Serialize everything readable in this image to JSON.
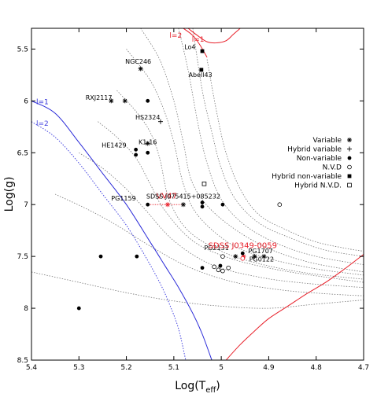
{
  "chart_data": {
    "type": "scatter",
    "title": "",
    "xlabel_main": "Log(T",
    "xlabel_sub": "eff",
    "xlabel_close": ")",
    "ylabel": "Log(g)",
    "xlim": [
      5.4,
      4.7
    ],
    "ylim": [
      8.5,
      5.3
    ],
    "x_ticks": [
      5.4,
      5.3,
      5.2,
      5.1,
      5.0,
      4.9,
      4.8,
      4.7
    ],
    "x_tick_labels": [
      "5.4",
      "5.3",
      "5.2",
      "5.1",
      "5",
      "4.9",
      "4.8",
      "4.7"
    ],
    "y_ticks": [
      5.5,
      6.0,
      6.5,
      7.0,
      7.5,
      8.0,
      8.5
    ],
    "y_tick_labels": [
      "5.5",
      "6",
      "6.5",
      "7",
      "7.5",
      "8",
      "8.5"
    ],
    "grid": false,
    "legend_placement": "right",
    "legend": [
      {
        "label": "Variable",
        "marker": "asterisk"
      },
      {
        "label": "Hybrid variable",
        "marker": "plus"
      },
      {
        "label": "Non-variable",
        "marker": "filled-circle"
      },
      {
        "label": "N.V.D",
        "marker": "open-circle"
      },
      {
        "label": "Hybrid non-variable",
        "marker": "filled-square"
      },
      {
        "label": "Hybrid N.V.D.",
        "marker": "open-square"
      }
    ],
    "points": [
      {
        "marker": "asterisk",
        "x": 5.17,
        "y": 5.69
      },
      {
        "marker": "asterisk",
        "x": 5.232,
        "y": 6.0
      },
      {
        "marker": "asterisk",
        "x": 5.203,
        "y": 6.0
      },
      {
        "marker": "asterisk",
        "x": 5.155,
        "y": 6.41
      },
      {
        "marker": "asterisk",
        "x": 5.08,
        "y": 7.0
      },
      {
        "marker": "asterisk",
        "x": 4.97,
        "y": 7.5
      },
      {
        "marker": "asterisk",
        "x": 4.93,
        "y": 7.5
      },
      {
        "marker": "asterisk",
        "x": 4.91,
        "y": 7.5
      },
      {
        "marker": "asterisk",
        "x": 5.113,
        "y": 7.0,
        "color": "#e8202a"
      },
      {
        "marker": "asterisk",
        "x": 4.953,
        "y": 7.5,
        "color": "#e8202a"
      },
      {
        "marker": "plus",
        "x": 5.128,
        "y": 6.2
      },
      {
        "marker": "filled-circle",
        "x": 5.155,
        "y": 6.0
      },
      {
        "marker": "filled-circle",
        "x": 5.18,
        "y": 6.47
      },
      {
        "marker": "filled-circle",
        "x": 5.18,
        "y": 6.52
      },
      {
        "marker": "filled-circle",
        "x": 5.155,
        "y": 6.5
      },
      {
        "marker": "filled-circle",
        "x": 5.155,
        "y": 7.0
      },
      {
        "marker": "filled-circle",
        "x": 5.04,
        "y": 6.98
      },
      {
        "marker": "filled-circle",
        "x": 5.04,
        "y": 7.02
      },
      {
        "marker": "filled-circle",
        "x": 4.997,
        "y": 7.0
      },
      {
        "marker": "filled-circle",
        "x": 5.254,
        "y": 7.5
      },
      {
        "marker": "filled-circle",
        "x": 5.178,
        "y": 7.5
      },
      {
        "marker": "filled-circle",
        "x": 5.3,
        "y": 8.0
      },
      {
        "marker": "filled-circle",
        "x": 5.04,
        "y": 7.61
      },
      {
        "marker": "filled-circle",
        "x": 5.002,
        "y": 7.59
      },
      {
        "marker": "filled-circle",
        "x": 4.955,
        "y": 7.47
      },
      {
        "marker": "open-circle",
        "x": 4.877,
        "y": 7.0
      },
      {
        "marker": "open-circle",
        "x": 4.997,
        "y": 7.5
      },
      {
        "marker": "open-circle",
        "x": 5.015,
        "y": 7.6
      },
      {
        "marker": "open-circle",
        "x": 5.006,
        "y": 7.63
      },
      {
        "marker": "open-circle",
        "x": 4.997,
        "y": 7.64
      },
      {
        "marker": "open-circle",
        "x": 4.985,
        "y": 7.61
      },
      {
        "marker": "open-circle",
        "x": 4.955,
        "y": 7.52,
        "color": "#e8202a"
      },
      {
        "marker": "filled-square",
        "x": 5.04,
        "y": 5.52
      },
      {
        "marker": "filled-square",
        "x": 5.042,
        "y": 5.7
      },
      {
        "marker": "open-square",
        "x": 5.036,
        "y": 6.8
      }
    ],
    "annotations": [
      {
        "text": "Lo4",
        "x": 5.066,
        "y": 5.5,
        "color": "#000000"
      },
      {
        "text": "NGC246",
        "x": 5.175,
        "y": 5.64,
        "color": "#000000"
      },
      {
        "text": "Abell43",
        "x": 5.044,
        "y": 5.77,
        "color": "#000000"
      },
      {
        "text": "RXJ2117",
        "x": 5.258,
        "y": 5.99,
        "color": "#000000"
      },
      {
        "text": "HE1429",
        "x": 5.226,
        "y": 6.45,
        "color": "#000000"
      },
      {
        "text": "HS2324",
        "x": 5.155,
        "y": 6.18,
        "color": "#000000"
      },
      {
        "text": "K1-16",
        "x": 5.155,
        "y": 6.42,
        "color": "#000000"
      },
      {
        "text": "VV47",
        "x": 5.115,
        "y": 6.94,
        "color": "#e8202a"
      },
      {
        "text": "SDSS J075415+085232",
        "x": 5.08,
        "y": 6.94,
        "color": "#000000"
      },
      {
        "text": "PG1159",
        "x": 5.206,
        "y": 6.96,
        "color": "#000000"
      },
      {
        "text": "PG2131",
        "x": 5.01,
        "y": 7.44,
        "color": "#000000"
      },
      {
        "text": "SDSS J0349-0059",
        "x": 4.955,
        "y": 7.42,
        "color": "#e8202a"
      },
      {
        "text": "PG1707",
        "x": 4.917,
        "y": 7.47,
        "color": "#000000"
      },
      {
        "text": "PG0122",
        "x": 4.915,
        "y": 7.55,
        "color": "#000000"
      }
    ],
    "instability_curves": [
      {
        "label": "l=1",
        "color": "#2a2ad8",
        "style": "solid",
        "label_x": 5.39,
        "label_y": 6.03,
        "x": [
          5.4,
          5.35,
          5.3,
          5.25,
          5.2,
          5.15,
          5.12,
          5.09,
          5.06,
          5.04,
          5.02
        ],
        "y": [
          6.0,
          6.12,
          6.4,
          6.7,
          7.0,
          7.36,
          7.58,
          7.8,
          8.05,
          8.25,
          8.5
        ]
      },
      {
        "label": "l=2",
        "color": "#4646e0",
        "style": "dotted",
        "label_x": 5.39,
        "label_y": 6.24,
        "x": [
          5.4,
          5.35,
          5.3,
          5.25,
          5.2,
          5.16,
          5.13,
          5.11,
          5.09,
          5.075
        ],
        "y": [
          6.2,
          6.35,
          6.6,
          6.9,
          7.2,
          7.5,
          7.75,
          7.95,
          8.2,
          8.5
        ]
      },
      {
        "label": "l=1",
        "color": "#e8202a",
        "style": "solid",
        "label_x": 5.062,
        "label_y": 5.43,
        "x": [
          5.07,
          5.05,
          5.03,
          5.01,
          4.99,
          4.975,
          4.96
        ],
        "y": [
          5.3,
          5.37,
          5.43,
          5.44,
          5.42,
          5.36,
          5.3
        ]
      },
      {
        "label": "l=2",
        "color": "#e8202a",
        "style": "solid",
        "label_x": 5.109,
        "label_y": 5.39,
        "x": [
          5.08,
          5.06,
          5.045,
          5.03
        ],
        "y": [
          5.3,
          5.37,
          5.46,
          5.58
        ]
      },
      {
        "label": "",
        "color": "#e8202a",
        "style": "solid",
        "label_x": 0,
        "label_y": 0,
        "x": [
          4.99,
          4.96,
          4.93,
          4.9,
          4.86,
          4.82,
          4.78,
          4.74,
          4.7
        ],
        "y": [
          8.5,
          8.35,
          8.22,
          8.1,
          7.98,
          7.86,
          7.75,
          7.62,
          7.48
        ]
      }
    ],
    "tracks": [
      {
        "x": [
          5.17,
          5.13,
          5.1,
          5.08,
          5.06,
          5.01,
          4.92,
          4.82,
          4.7
        ],
        "y": [
          5.3,
          5.6,
          6.0,
          6.4,
          6.8,
          7.1,
          7.38,
          7.55,
          7.65
        ]
      },
      {
        "x": [
          5.2,
          5.15,
          5.12,
          5.1,
          5.08,
          5.05,
          4.98,
          4.9,
          4.8,
          4.7
        ],
        "y": [
          5.5,
          5.8,
          6.1,
          6.4,
          6.8,
          7.1,
          7.38,
          7.52,
          7.62,
          7.68
        ]
      },
      {
        "x": [
          5.22,
          5.18,
          5.15,
          5.13,
          5.11,
          5.07,
          5.0,
          4.92,
          4.82,
          4.7
        ],
        "y": [
          5.9,
          6.1,
          6.3,
          6.55,
          6.95,
          7.25,
          7.45,
          7.57,
          7.66,
          7.72
        ]
      },
      {
        "x": [
          5.26,
          5.22,
          5.18,
          5.15,
          5.12,
          5.06,
          4.98,
          4.88,
          4.78,
          4.7
        ],
        "y": [
          6.2,
          6.35,
          6.55,
          6.8,
          7.05,
          7.35,
          7.52,
          7.63,
          7.7,
          7.75
        ]
      },
      {
        "x": [
          5.3,
          5.25,
          5.2,
          5.16,
          5.1,
          5.02,
          4.92,
          4.82,
          4.7
        ],
        "y": [
          6.5,
          6.65,
          6.85,
          7.05,
          7.35,
          7.58,
          7.7,
          7.76,
          7.8
        ]
      },
      {
        "x": [
          5.35,
          5.28,
          5.22,
          5.15,
          5.07,
          4.98,
          4.88,
          4.78,
          4.7
        ],
        "y": [
          6.9,
          7.05,
          7.2,
          7.4,
          7.6,
          7.74,
          7.82,
          7.86,
          7.88
        ]
      },
      {
        "x": [
          5.4,
          5.3,
          5.2,
          5.1,
          5.0,
          4.9,
          4.8,
          4.7
        ],
        "y": [
          7.65,
          7.75,
          7.85,
          7.93,
          7.98,
          8.0,
          7.96,
          7.92
        ]
      },
      {
        "x": [
          5.09,
          5.07,
          5.05,
          5.03,
          5.0,
          4.95,
          4.88,
          4.8,
          4.7
        ],
        "y": [
          5.3,
          5.7,
          6.2,
          6.6,
          6.95,
          7.2,
          7.38,
          7.5,
          7.58
        ]
      },
      {
        "x": [
          5.06,
          5.04,
          5.02,
          5.0,
          4.97,
          4.92,
          4.85,
          4.78,
          4.7
        ],
        "y": [
          5.3,
          5.9,
          6.3,
          6.65,
          6.95,
          7.18,
          7.33,
          7.44,
          7.5
        ]
      },
      {
        "x": [
          5.03,
          5.01,
          4.99,
          4.96,
          4.92,
          4.86,
          4.8,
          4.74,
          4.7
        ],
        "y": [
          5.6,
          6.1,
          6.5,
          6.85,
          7.1,
          7.25,
          7.36,
          7.42,
          7.45
        ]
      }
    ]
  }
}
